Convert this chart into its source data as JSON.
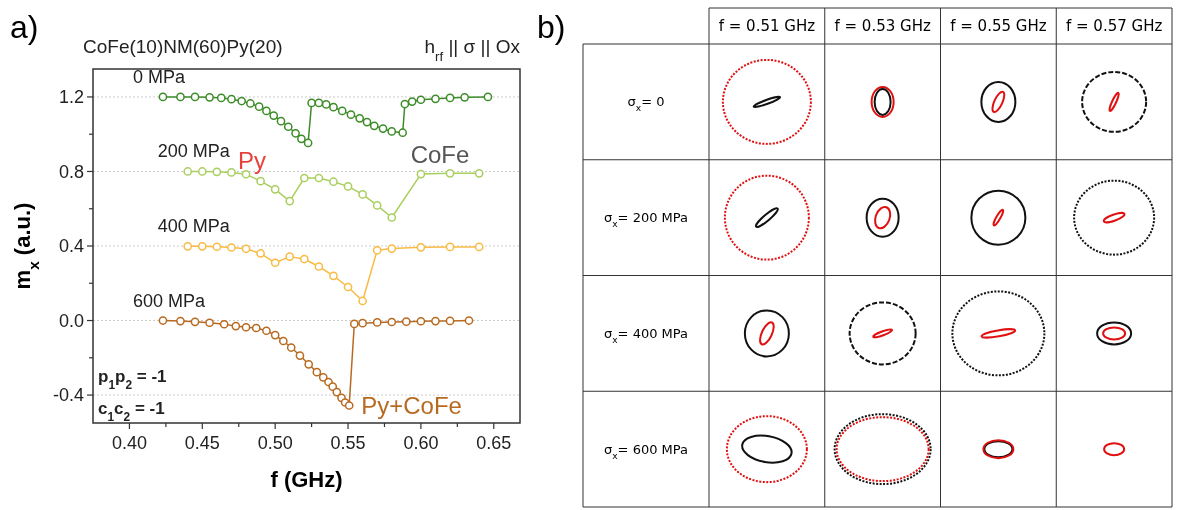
{
  "chart_data": [
    {
      "type": "line",
      "title": "a)",
      "xlabel": "f (GHz)",
      "ylabel": "m$_{x}$ (a.u.)",
      "marker": "circle",
      "grid": "y",
      "xlim": [
        0.375,
        0.668
      ],
      "ylim": [
        -0.55,
        1.35
      ],
      "xticks": [
        {
          "value": 0.4,
          "label": "0.40"
        },
        {
          "value": 0.425,
          "label": null
        },
        {
          "value": 0.45,
          "label": "0.45"
        },
        {
          "value": 0.475,
          "label": null
        },
        {
          "value": 0.5,
          "label": "0.50"
        },
        {
          "value": 0.525,
          "label": null
        },
        {
          "value": 0.55,
          "label": "0.55"
        },
        {
          "value": 0.575,
          "label": null
        },
        {
          "value": 0.6,
          "label": "0.60"
        },
        {
          "value": 0.625,
          "label": null
        },
        {
          "value": 0.65,
          "label": "0.65"
        }
      ],
      "yticks": [
        -0.4,
        {
          "value": -0.2,
          "label": null
        },
        {
          "value": 0,
          "label": "0.0"
        },
        {
          "value": 0.2,
          "label": null
        },
        0.4,
        {
          "value": 0.6,
          "label": null
        },
        0.8,
        {
          "value": 1.0,
          "label": null
        },
        1.2
      ],
      "series": [
        {
          "name": "0 MPa",
          "color": "#3c8c28",
          "x": [
            0.423,
            0.435,
            0.445,
            0.455,
            0.463,
            0.47,
            0.477,
            0.483,
            0.489,
            0.494,
            0.499,
            0.504,
            0.509,
            0.514,
            0.518,
            0.5226,
            0.525,
            0.53,
            0.535,
            0.54,
            0.546,
            0.552,
            0.558,
            0.563,
            0.568,
            0.574,
            0.58,
            0.5875,
            0.589,
            0.594,
            0.6,
            0.61,
            0.62,
            0.63,
            0.646
          ],
          "values": [
            1.2,
            1.2,
            1.2,
            1.198,
            1.195,
            1.188,
            1.178,
            1.165,
            1.148,
            1.125,
            1.1,
            1.07,
            1.04,
            1.005,
            0.975,
            0.953,
            1.168,
            1.168,
            1.16,
            1.145,
            1.125,
            1.105,
            1.085,
            1.065,
            1.045,
            1.03,
            1.015,
            1.008,
            1.162,
            1.175,
            1.185,
            1.19,
            1.195,
            1.198,
            1.2
          ]
        },
        {
          "name": "200 MPa",
          "color": "#a9cf5e",
          "x": [
            0.44,
            0.45,
            0.46,
            0.47,
            0.48,
            0.49,
            0.5,
            0.51,
            0.52,
            0.53,
            0.54,
            0.55,
            0.56,
            0.57,
            0.58,
            0.6,
            0.62,
            0.64
          ],
          "values": [
            0.8,
            0.8,
            0.798,
            0.795,
            0.785,
            0.748,
            0.704,
            0.641,
            0.765,
            0.765,
            0.745,
            0.72,
            0.677,
            0.618,
            0.553,
            0.786,
            0.79,
            0.79
          ]
        },
        {
          "name": "400 MPa",
          "color": "#f8bb44",
          "x": [
            0.44,
            0.45,
            0.46,
            0.47,
            0.48,
            0.49,
            0.5,
            0.51,
            0.52,
            0.53,
            0.54,
            0.55,
            0.56,
            0.57,
            0.58,
            0.6,
            0.62,
            0.64
          ],
          "values": [
            0.398,
            0.398,
            0.396,
            0.392,
            0.385,
            0.36,
            0.31,
            0.343,
            0.33,
            0.29,
            0.24,
            0.18,
            0.105,
            0.377,
            0.386,
            0.393,
            0.395,
            0.395
          ]
        },
        {
          "name": "600 MPa",
          "color": "#b96a21",
          "x": [
            0.423,
            0.435,
            0.445,
            0.455,
            0.465,
            0.473,
            0.48,
            0.487,
            0.494,
            0.5,
            0.5056,
            0.511,
            0.517,
            0.523,
            0.5286,
            0.533,
            0.5366,
            0.5395,
            0.5423,
            0.5455,
            0.548,
            0.5508,
            0.5543,
            0.56,
            0.57,
            0.58,
            0.59,
            0.6,
            0.61,
            0.62,
            0.633
          ],
          "values": [
            0,
            -0.003,
            -0.007,
            -0.012,
            -0.02,
            -0.03,
            -0.036,
            -0.04,
            -0.055,
            -0.078,
            -0.11,
            -0.145,
            -0.188,
            -0.235,
            -0.277,
            -0.305,
            -0.33,
            -0.355,
            -0.384,
            -0.415,
            -0.44,
            -0.456,
            -0.018,
            -0.014,
            -0.01,
            -0.008,
            -0.006,
            -0.004,
            -0.003,
            -0.002,
            0
          ]
        }
      ],
      "annotations": [
        "CoFe(10)NM(60)Py(20)",
        "h$_{rf}$ || σ || Ox",
        "p$_{1}$p$_{2}$ = -1",
        "c$_{1}$c$_{2}$ = -1",
        {
          "text": "Py",
          "x": 0.5226,
          "y": 0.953
        },
        {
          "text": "CoFe",
          "x": 0.5875,
          "y": 1.008
        },
        {
          "text": "Py+CoFe",
          "x": 0.5508,
          "y": -0.456
        }
      ]
    },
    {
      "type": "other",
      "title": "b)",
      "categories": [
        "f = 0.51 GHz",
        "f = 0.53 GHz",
        "f = 0.55 GHz",
        "f = 0.57 GHz"
      ],
      "y_categories": [
        "σ$_{x}$= 0",
        "σ$_{x}$= 200 MPa",
        "σ$_{x}$= 400 MPa",
        "σ$_{x}$= 600 MPa"
      ]
    }
  ]
}
